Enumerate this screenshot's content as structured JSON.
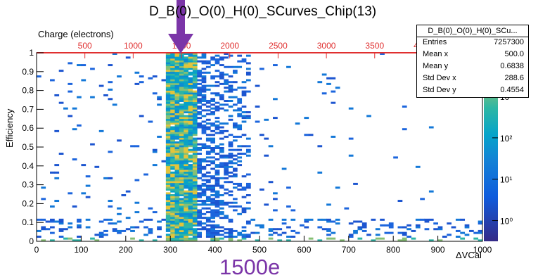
{
  "chart_data": {
    "type": "heatmap",
    "title": "D_B(0)_O(0)_H(0)_SCurves_Chip(13)",
    "xlabel": "ΔVCal",
    "ylabel": "Efficiency",
    "top_axis_label": "Charge (electrons)",
    "xlim": [
      0,
      1000
    ],
    "ylim": [
      0,
      1
    ],
    "x_ticks": [
      "0",
      "100",
      "200",
      "300",
      "400",
      "500",
      "600",
      "700",
      "800",
      "900",
      "1000"
    ],
    "y_ticks": [
      "0",
      "0.1",
      "0.2",
      "0.3",
      "0.4",
      "0.5",
      "0.6",
      "0.7",
      "0.8",
      "0.9",
      "1"
    ],
    "top_ticks": [
      "500",
      "1000",
      "1500",
      "2000",
      "2500",
      "3000",
      "3500",
      "4000"
    ],
    "colorbar": {
      "scale": "log",
      "tick_labels": [
        "10⁰",
        "10¹",
        "10²",
        "10³"
      ],
      "tick_values": [
        1,
        10,
        100,
        1000
      ]
    },
    "annotation": {
      "text": "1500e",
      "points_to_x": 325,
      "color": "#7b35a8"
    },
    "stats_box": {
      "name": "D_B(0)_O(0)_H(0)_SCu...",
      "entries": [
        {
          "label": "Entries",
          "value": "7257300"
        },
        {
          "label": "Mean x",
          "value": "500.0"
        },
        {
          "label": "Mean y",
          "value": "0.6838"
        },
        {
          "label": "Std Dev x",
          "value": "288.6"
        },
        {
          "label": "Std Dev y",
          "value": "0.4554"
        }
      ]
    },
    "transition_center_x": 325,
    "transition_width_x": 40
  }
}
